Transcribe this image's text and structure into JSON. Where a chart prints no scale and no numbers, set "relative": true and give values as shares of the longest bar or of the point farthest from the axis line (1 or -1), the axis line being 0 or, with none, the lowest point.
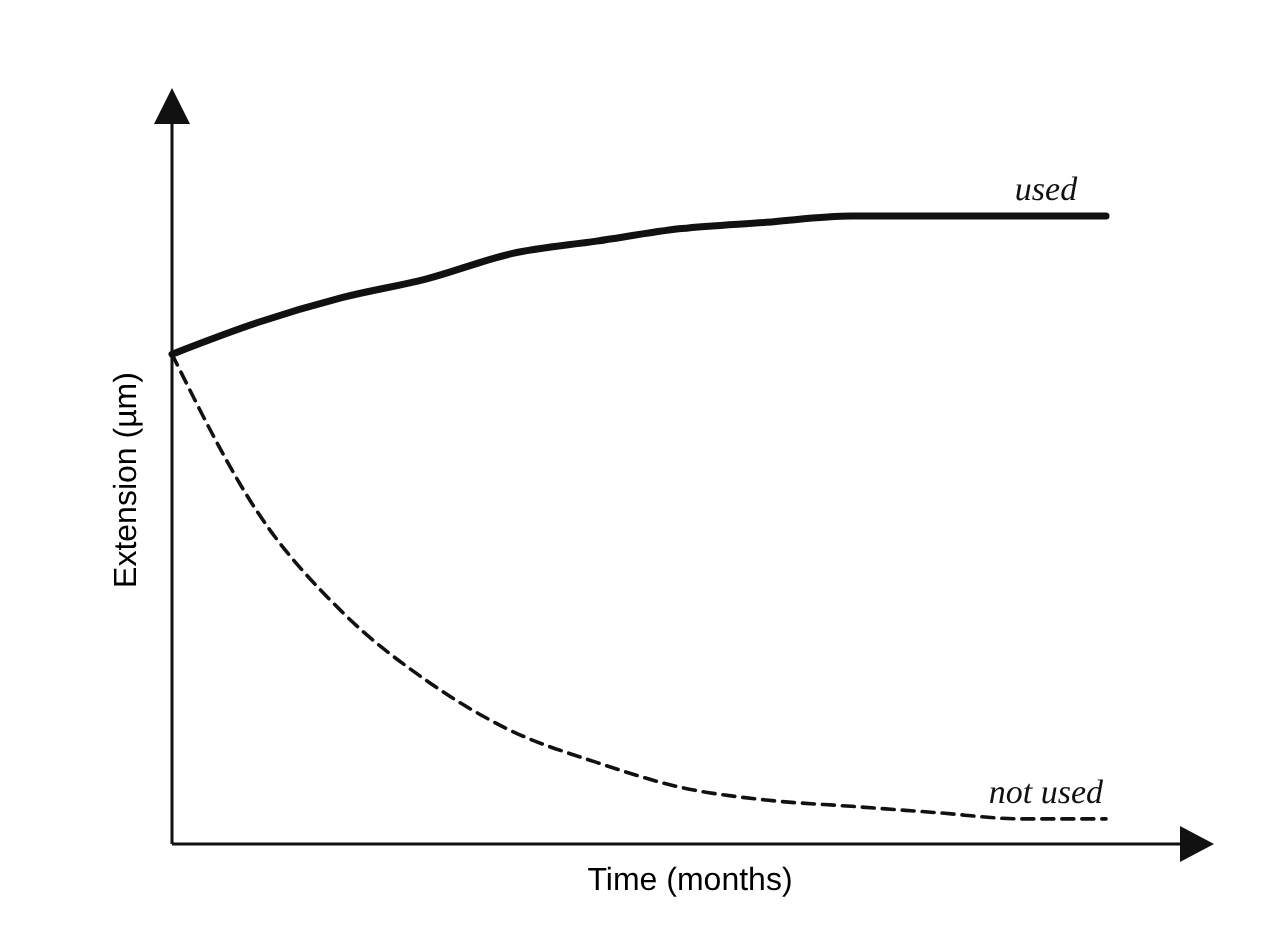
{
  "chart_data": {
    "type": "line",
    "relative": true,
    "xlabel": "Time (months)",
    "ylabel": "Extension (µm)",
    "categories": [
      null,
      null,
      null,
      null,
      null,
      null,
      null,
      null,
      null,
      null,
      null,
      null
    ],
    "tick_labels": false,
    "grid": false,
    "legend": false,
    "marker": "none",
    "series": [
      {
        "name": "used",
        "color": "#111111",
        "line_style": "solid",
        "values": [
          0.78,
          0.83,
          0.87,
          0.9,
          0.94,
          0.96,
          0.98,
          0.99,
          1,
          1,
          1,
          1
        ]
      },
      {
        "name": "not used",
        "color": "#111111",
        "line_style": "dashed",
        "values": [
          0.78,
          0.53,
          0.37,
          0.26,
          0.18,
          0.13,
          0.09,
          0.07,
          0.06,
          0.05,
          0.04,
          0.04
        ]
      }
    ]
  }
}
